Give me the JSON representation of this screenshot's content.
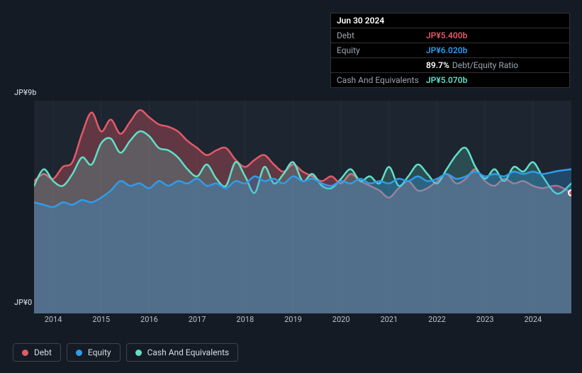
{
  "tooltip": {
    "date": "Jun 30 2024",
    "rows": [
      {
        "label": "Debt",
        "value": "JP¥5.400b",
        "color": "#e25a68"
      },
      {
        "label": "Equity",
        "value": "JP¥6.020b",
        "color": "#2f9ceb"
      },
      {
        "label": "",
        "ratio_pct": "89.7%",
        "ratio_label": "Debt/Equity Ratio",
        "color": "#ffffff"
      },
      {
        "label": "Cash And Equivalents",
        "value": "JP¥5.070b",
        "color": "#5fe0c8"
      }
    ]
  },
  "chart": {
    "type": "area",
    "background_color": "#151b24",
    "plot_background": "#1d2530",
    "ylim": [
      0,
      9
    ],
    "y_unit": "JP¥b",
    "y_labels": {
      "top": "JP¥9b",
      "bottom": "JP¥0"
    },
    "x_years": [
      2014,
      2015,
      2016,
      2017,
      2018,
      2019,
      2020,
      2021,
      2022,
      2023,
      2024
    ],
    "x_range": [
      2013.6,
      2024.8
    ],
    "grid_vertical_color": "#262f3c",
    "series": [
      {
        "name": "Debt",
        "color": "#e25a68",
        "fill_opacity": 0.35,
        "line_width": 2.5,
        "data": [
          [
            2013.6,
            5.6
          ],
          [
            2013.8,
            5.9
          ],
          [
            2014.0,
            5.7
          ],
          [
            2014.2,
            6.2
          ],
          [
            2014.4,
            6.4
          ],
          [
            2014.6,
            7.6
          ],
          [
            2014.8,
            8.5
          ],
          [
            2015.0,
            7.7
          ],
          [
            2015.2,
            8.2
          ],
          [
            2015.4,
            7.6
          ],
          [
            2015.6,
            8.1
          ],
          [
            2015.8,
            8.6
          ],
          [
            2016.0,
            8.3
          ],
          [
            2016.2,
            8.0
          ],
          [
            2016.4,
            7.9
          ],
          [
            2016.6,
            7.7
          ],
          [
            2016.8,
            7.3
          ],
          [
            2017.0,
            7.0
          ],
          [
            2017.2,
            6.7
          ],
          [
            2017.4,
            6.9
          ],
          [
            2017.6,
            7.0
          ],
          [
            2017.8,
            6.5
          ],
          [
            2018.0,
            6.2
          ],
          [
            2018.2,
            6.5
          ],
          [
            2018.4,
            6.7
          ],
          [
            2018.6,
            6.3
          ],
          [
            2018.8,
            6.0
          ],
          [
            2019.0,
            6.3
          ],
          [
            2019.2,
            6.0
          ],
          [
            2019.4,
            5.8
          ],
          [
            2019.6,
            5.6
          ],
          [
            2019.8,
            5.8
          ],
          [
            2020.0,
            5.5
          ],
          [
            2020.2,
            5.9
          ],
          [
            2020.4,
            5.6
          ],
          [
            2020.6,
            5.4
          ],
          [
            2020.8,
            5.2
          ],
          [
            2021.0,
            4.9
          ],
          [
            2021.2,
            5.3
          ],
          [
            2021.4,
            5.6
          ],
          [
            2021.6,
            5.2
          ],
          [
            2021.8,
            5.3
          ],
          [
            2022.0,
            5.6
          ],
          [
            2022.2,
            5.9
          ],
          [
            2022.4,
            5.5
          ],
          [
            2022.6,
            5.7
          ],
          [
            2022.8,
            6.1
          ],
          [
            2023.0,
            5.6
          ],
          [
            2023.2,
            5.4
          ],
          [
            2023.4,
            5.7
          ],
          [
            2023.6,
            5.5
          ],
          [
            2023.8,
            5.6
          ],
          [
            2024.0,
            5.4
          ],
          [
            2024.2,
            5.3
          ],
          [
            2024.5,
            5.4
          ],
          [
            2024.8,
            5.1
          ]
        ]
      },
      {
        "name": "Cash And Equivalents",
        "color": "#5fe0c8",
        "fill_opacity": 0.22,
        "line_width": 2.5,
        "data": [
          [
            2013.6,
            5.4
          ],
          [
            2013.8,
            6.1
          ],
          [
            2014.0,
            5.6
          ],
          [
            2014.2,
            5.4
          ],
          [
            2014.4,
            5.9
          ],
          [
            2014.6,
            6.6
          ],
          [
            2014.8,
            6.3
          ],
          [
            2015.0,
            7.2
          ],
          [
            2015.2,
            7.4
          ],
          [
            2015.4,
            6.8
          ],
          [
            2015.6,
            7.3
          ],
          [
            2015.8,
            7.7
          ],
          [
            2016.0,
            7.5
          ],
          [
            2016.2,
            7.0
          ],
          [
            2016.4,
            6.9
          ],
          [
            2016.6,
            6.6
          ],
          [
            2016.8,
            6.1
          ],
          [
            2017.0,
            5.8
          ],
          [
            2017.2,
            6.3
          ],
          [
            2017.4,
            5.7
          ],
          [
            2017.6,
            5.4
          ],
          [
            2017.8,
            6.4
          ],
          [
            2018.0,
            5.8
          ],
          [
            2018.2,
            5.1
          ],
          [
            2018.4,
            6.2
          ],
          [
            2018.6,
            5.5
          ],
          [
            2018.8,
            5.9
          ],
          [
            2019.0,
            6.4
          ],
          [
            2019.2,
            5.6
          ],
          [
            2019.4,
            5.9
          ],
          [
            2019.6,
            5.4
          ],
          [
            2019.8,
            5.3
          ],
          [
            2020.0,
            5.7
          ],
          [
            2020.2,
            6.1
          ],
          [
            2020.4,
            5.6
          ],
          [
            2020.6,
            5.8
          ],
          [
            2020.8,
            5.5
          ],
          [
            2021.0,
            6.2
          ],
          [
            2021.2,
            5.4
          ],
          [
            2021.4,
            5.8
          ],
          [
            2021.6,
            6.3
          ],
          [
            2021.8,
            5.9
          ],
          [
            2022.0,
            5.5
          ],
          [
            2022.2,
            6.1
          ],
          [
            2022.4,
            6.7
          ],
          [
            2022.6,
            7.0
          ],
          [
            2022.8,
            6.2
          ],
          [
            2023.0,
            5.7
          ],
          [
            2023.2,
            6.1
          ],
          [
            2023.4,
            5.6
          ],
          [
            2023.6,
            6.2
          ],
          [
            2023.8,
            6.0
          ],
          [
            2024.0,
            6.4
          ],
          [
            2024.2,
            5.8
          ],
          [
            2024.5,
            5.07
          ],
          [
            2024.8,
            5.5
          ]
        ]
      },
      {
        "name": "Equity",
        "color": "#2f9ceb",
        "fill_opacity": 0.3,
        "line_width": 2.5,
        "data": [
          [
            2013.6,
            4.7
          ],
          [
            2013.8,
            4.6
          ],
          [
            2014.0,
            4.5
          ],
          [
            2014.2,
            4.7
          ],
          [
            2014.4,
            4.6
          ],
          [
            2014.6,
            4.8
          ],
          [
            2014.8,
            4.7
          ],
          [
            2015.0,
            4.9
          ],
          [
            2015.2,
            5.2
          ],
          [
            2015.4,
            5.6
          ],
          [
            2015.6,
            5.4
          ],
          [
            2015.8,
            5.5
          ],
          [
            2016.0,
            5.3
          ],
          [
            2016.2,
            5.6
          ],
          [
            2016.4,
            5.4
          ],
          [
            2016.6,
            5.6
          ],
          [
            2016.8,
            5.5
          ],
          [
            2017.0,
            5.7
          ],
          [
            2017.2,
            5.4
          ],
          [
            2017.4,
            5.5
          ],
          [
            2017.6,
            5.3
          ],
          [
            2017.8,
            5.6
          ],
          [
            2018.0,
            5.5
          ],
          [
            2018.2,
            5.8
          ],
          [
            2018.4,
            5.6
          ],
          [
            2018.6,
            5.7
          ],
          [
            2018.8,
            5.5
          ],
          [
            2019.0,
            5.8
          ],
          [
            2019.2,
            5.6
          ],
          [
            2019.4,
            5.7
          ],
          [
            2019.6,
            5.5
          ],
          [
            2019.8,
            5.4
          ],
          [
            2020.0,
            5.6
          ],
          [
            2020.2,
            5.5
          ],
          [
            2020.4,
            5.7
          ],
          [
            2020.6,
            5.5
          ],
          [
            2020.8,
            5.6
          ],
          [
            2021.0,
            5.5
          ],
          [
            2021.2,
            5.7
          ],
          [
            2021.4,
            5.6
          ],
          [
            2021.6,
            5.8
          ],
          [
            2021.8,
            5.6
          ],
          [
            2022.0,
            5.7
          ],
          [
            2022.2,
            5.9
          ],
          [
            2022.4,
            5.7
          ],
          [
            2022.6,
            5.8
          ],
          [
            2022.8,
            6.0
          ],
          [
            2023.0,
            5.8
          ],
          [
            2023.2,
            5.9
          ],
          [
            2023.4,
            5.8
          ],
          [
            2023.6,
            6.0
          ],
          [
            2023.8,
            5.9
          ],
          [
            2024.0,
            6.0
          ],
          [
            2024.2,
            5.9
          ],
          [
            2024.5,
            6.02
          ],
          [
            2024.8,
            6.1
          ]
        ]
      }
    ],
    "legend": [
      {
        "name": "Debt",
        "color": "#e25a68"
      },
      {
        "name": "Equity",
        "color": "#2f9ceb"
      },
      {
        "name": "Cash And Equivalents",
        "color": "#5fe0c8"
      }
    ]
  }
}
